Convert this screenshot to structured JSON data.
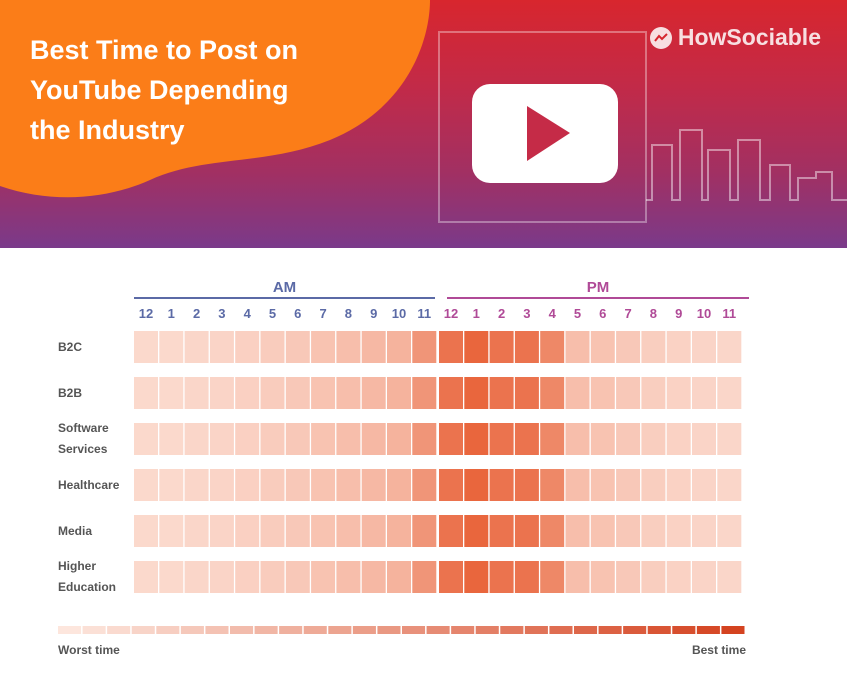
{
  "header": {
    "title": "Best Time to Post on\nYouTube Depending\nthe Industry",
    "brand": "HowSociable",
    "icons": [
      "youtube-play-icon",
      "city-skyline-icon",
      "howsociable-logo-icon"
    ]
  },
  "colors": {
    "am_accent": "#5b6aa6",
    "pm_accent": "#b04a97",
    "cell_light": "#fde6dd",
    "cell_dark": "#e85f35",
    "legend_dark": "#d44320",
    "blob": "#fb7d18"
  },
  "chart_data": {
    "type": "heatmap",
    "periods": [
      "AM",
      "PM"
    ],
    "x": [
      "12",
      "1",
      "2",
      "3",
      "4",
      "5",
      "6",
      "7",
      "8",
      "9",
      "10",
      "11",
      "12",
      "1",
      "2",
      "3",
      "4",
      "5",
      "6",
      "7",
      "8",
      "9",
      "10",
      "11"
    ],
    "y": [
      "B2C",
      "B2B",
      "Software Services",
      "Healthcare",
      "Media",
      "Higher Education"
    ],
    "y_display": [
      "B2C",
      "B2B",
      "Software\nServices",
      "Healthcare",
      "Media",
      "Higher\nEducation"
    ],
    "values": [
      [
        0.1,
        0.1,
        0.12,
        0.13,
        0.16,
        0.19,
        0.22,
        0.26,
        0.3,
        0.34,
        0.38,
        0.6,
        0.85,
        0.95,
        0.85,
        0.85,
        0.7,
        0.3,
        0.26,
        0.22,
        0.18,
        0.15,
        0.13,
        0.12
      ],
      [
        0.1,
        0.1,
        0.12,
        0.13,
        0.16,
        0.19,
        0.22,
        0.26,
        0.3,
        0.34,
        0.38,
        0.6,
        0.85,
        0.95,
        0.85,
        0.85,
        0.7,
        0.3,
        0.26,
        0.22,
        0.18,
        0.15,
        0.13,
        0.12
      ],
      [
        0.1,
        0.1,
        0.12,
        0.13,
        0.16,
        0.19,
        0.22,
        0.26,
        0.3,
        0.34,
        0.38,
        0.6,
        0.85,
        0.95,
        0.85,
        0.85,
        0.7,
        0.3,
        0.26,
        0.22,
        0.18,
        0.15,
        0.13,
        0.12
      ],
      [
        0.1,
        0.1,
        0.12,
        0.13,
        0.16,
        0.19,
        0.22,
        0.26,
        0.3,
        0.34,
        0.38,
        0.6,
        0.85,
        0.95,
        0.85,
        0.85,
        0.7,
        0.3,
        0.26,
        0.22,
        0.18,
        0.15,
        0.13,
        0.12
      ],
      [
        0.1,
        0.1,
        0.12,
        0.13,
        0.16,
        0.19,
        0.22,
        0.26,
        0.3,
        0.34,
        0.38,
        0.6,
        0.85,
        0.95,
        0.85,
        0.85,
        0.7,
        0.3,
        0.26,
        0.22,
        0.18,
        0.15,
        0.13,
        0.12
      ],
      [
        0.1,
        0.1,
        0.12,
        0.13,
        0.16,
        0.19,
        0.22,
        0.26,
        0.3,
        0.34,
        0.38,
        0.6,
        0.85,
        0.95,
        0.85,
        0.85,
        0.7,
        0.3,
        0.26,
        0.22,
        0.18,
        0.15,
        0.13,
        0.12
      ]
    ],
    "legend": {
      "low_label": "Worst time",
      "high_label": "Best time",
      "steps": 28
    },
    "grid": false
  }
}
